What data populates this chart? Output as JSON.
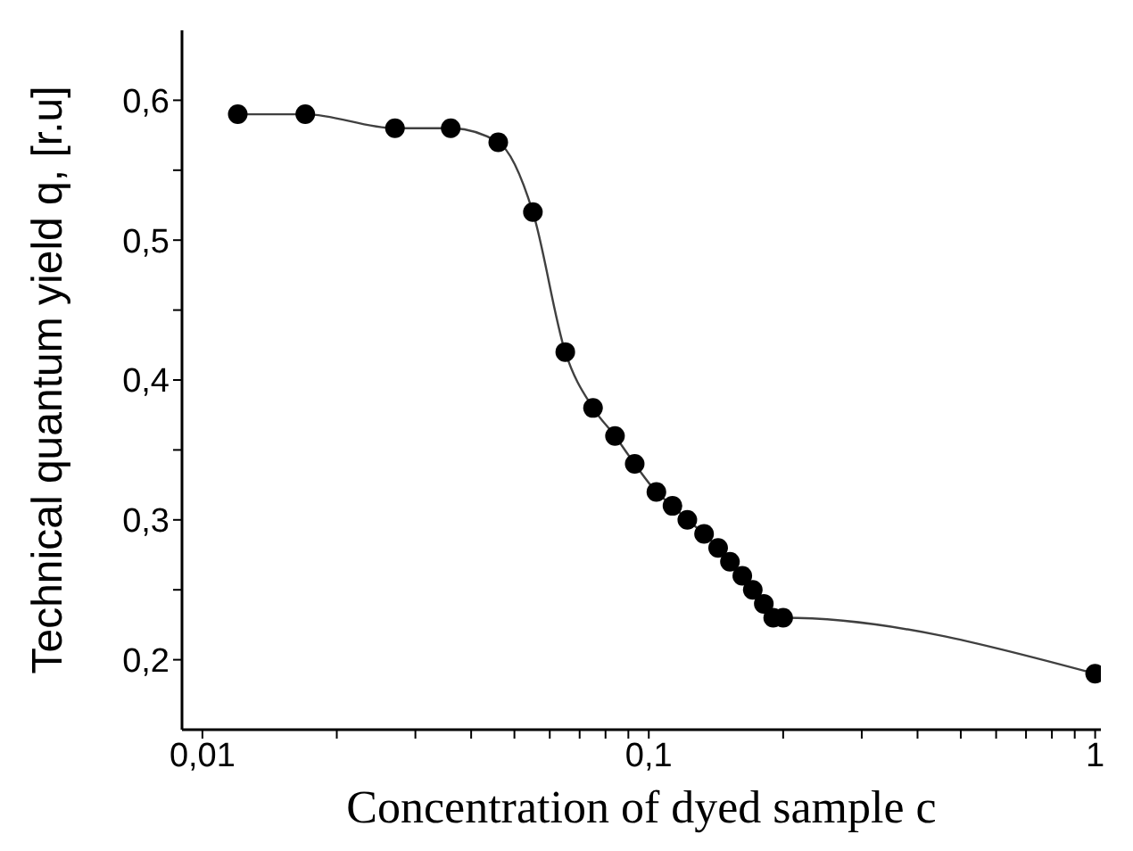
{
  "chart_data": {
    "type": "line",
    "xlabel": "Concentration of dyed sample c",
    "ylabel": "Technical quantum yield q, [r.u]",
    "x": [
      0.012,
      0.017,
      0.027,
      0.036,
      0.046,
      0.055,
      0.065,
      0.075,
      0.084,
      0.093,
      0.104,
      0.113,
      0.122,
      0.133,
      0.143,
      0.152,
      0.162,
      0.171,
      0.181,
      0.19,
      0.2,
      1
    ],
    "series": [
      {
        "color": "#000000",
        "values": [
          0.59,
          0.59,
          0.58,
          0.58,
          0.57,
          0.52,
          0.42,
          0.38,
          0.36,
          0.34,
          0.32,
          0.31,
          0.3,
          0.29,
          0.28,
          0.27,
          0.26,
          0.25,
          0.24,
          0.23,
          0.23,
          0.19
        ]
      }
    ],
    "log": "x",
    "xlim": [
      0.009,
      1.03
    ],
    "ylim": [
      0.15,
      0.65
    ],
    "xticks": [
      {
        "value": 0.01,
        "label": "0,01"
      },
      {
        "value": 0.02,
        "label": null
      },
      {
        "value": 0.03,
        "label": null
      },
      {
        "value": 0.04,
        "label": null
      },
      {
        "value": 0.05,
        "label": null
      },
      {
        "value": 0.06,
        "label": null
      },
      {
        "value": 0.07,
        "label": null
      },
      {
        "value": 0.08,
        "label": null
      },
      {
        "value": 0.09,
        "label": null
      },
      {
        "value": 0.1,
        "label": "0,1"
      },
      {
        "value": 0.2,
        "label": null
      },
      {
        "value": 0.3,
        "label": null
      },
      {
        "value": 0.4,
        "label": null
      },
      {
        "value": 0.5,
        "label": null
      },
      {
        "value": 0.6,
        "label": null
      },
      {
        "value": 0.7,
        "label": null
      },
      {
        "value": 0.8,
        "label": null
      },
      {
        "value": 0.9,
        "label": null
      },
      {
        "value": 1,
        "label": "1"
      }
    ],
    "yticks": [
      {
        "value": 0.2,
        "label": "0,2"
      },
      {
        "value": 0.25,
        "label": null
      },
      {
        "value": 0.3,
        "label": "0,3"
      },
      {
        "value": 0.35,
        "label": null
      },
      {
        "value": 0.4,
        "label": "0,4"
      },
      {
        "value": 0.45,
        "label": null
      },
      {
        "value": 0.5,
        "label": "0,5"
      },
      {
        "value": 0.55,
        "label": null
      },
      {
        "value": 0.6,
        "label": "0,6"
      }
    ],
    "grid": false,
    "legend": false,
    "marker": "circle",
    "line_style": "solid"
  }
}
